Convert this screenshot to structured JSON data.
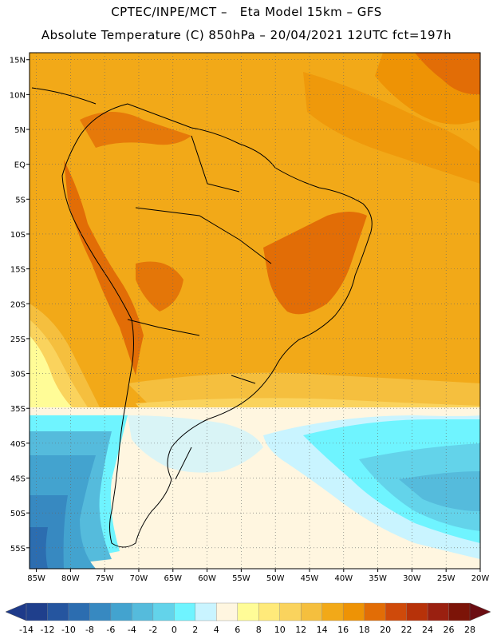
{
  "header": {
    "line1": "CPTEC/INPE/MCT –   Eta Model 15km – GFS",
    "line2": "Absolute Temperature (C) 850hPa – 20/04/2021 12UTC fct=197h"
  },
  "map": {
    "lat_range": [
      -58,
      16
    ],
    "lon_range": [
      -86,
      -20
    ],
    "lat_ticks": [
      "15N",
      "10N",
      "5N",
      "EQ",
      "5S",
      "10S",
      "15S",
      "20S",
      "25S",
      "30S",
      "35S",
      "40S",
      "45S",
      "50S",
      "55S"
    ],
    "lon_ticks": [
      "85W",
      "80W",
      "75W",
      "70W",
      "65W",
      "60W",
      "55W",
      "50W",
      "45W",
      "40W",
      "35W",
      "30W",
      "25W",
      "20W"
    ],
    "grid": true
  },
  "colorbar": {
    "labels": [
      "-14",
      "-12",
      "-10",
      "-8",
      "-6",
      "-4",
      "-2",
      "0",
      "2",
      "4",
      "6",
      "8",
      "10",
      "12",
      "14",
      "16",
      "18",
      "20",
      "22",
      "24",
      "26",
      "28"
    ],
    "colors": [
      "#1f3f8c",
      "#25559f",
      "#2c6db0",
      "#3789c1",
      "#43a3cf",
      "#55bbdc",
      "#63d3ea",
      "#6ff4ff",
      "#c9f4ff",
      "#fff6e0",
      "#fffc97",
      "#ffea7a",
      "#fad35d",
      "#f5bf3e",
      "#f2a918",
      "#ee9305",
      "#e26d06",
      "#cf4a0a",
      "#b73209",
      "#9a2010",
      "#7c1408"
    ],
    "under_color": "#1e3a8a",
    "over_color": "#6b0d12"
  }
}
